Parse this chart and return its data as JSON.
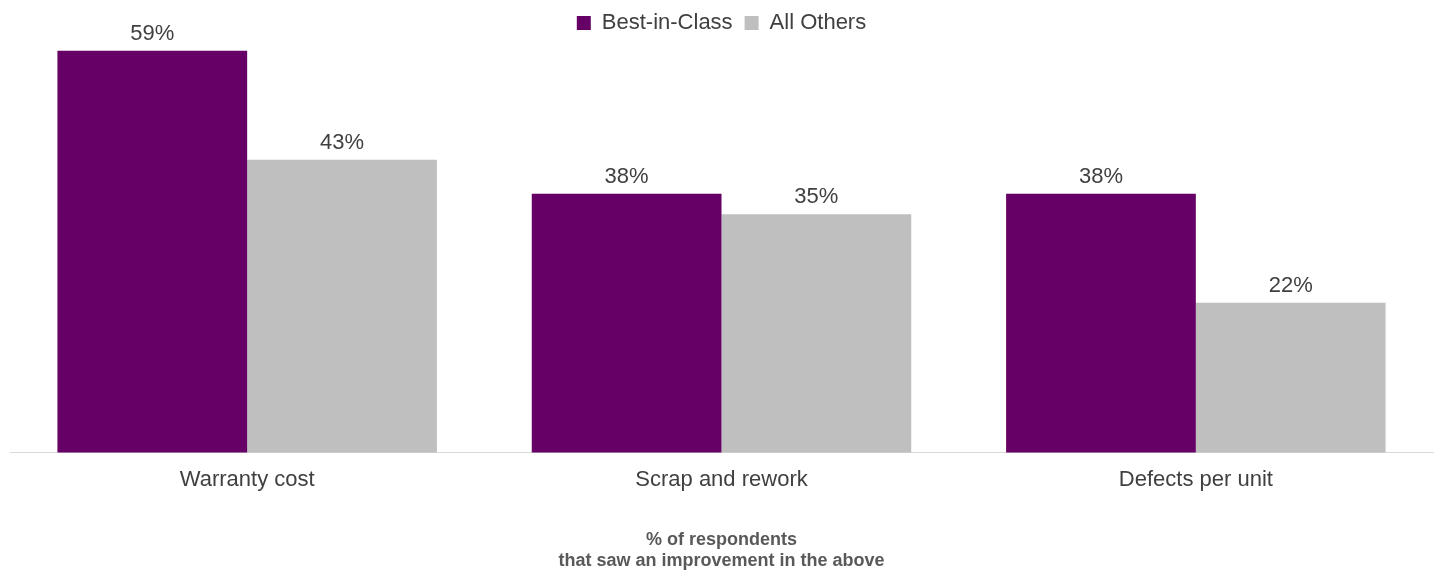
{
  "chart_data": {
    "type": "bar",
    "xlabel": "% of respondents\nthat saw an improvement in the above",
    "categories": [
      "Warranty cost",
      "Scrap and rework",
      "Defects per unit"
    ],
    "series": [
      {
        "name": "Best-in-Class",
        "color": "#660066",
        "values": [
          59,
          38,
          38
        ],
        "value_labels": [
          "59%",
          "38%",
          "38%"
        ]
      },
      {
        "name": "All Others",
        "color": "#bfbfbf",
        "values": [
          43,
          35,
          22
        ],
        "value_labels": [
          "43%",
          "35%",
          "22%"
        ]
      }
    ],
    "legend": "top",
    "grid": false,
    "tick_labels": "x"
  }
}
